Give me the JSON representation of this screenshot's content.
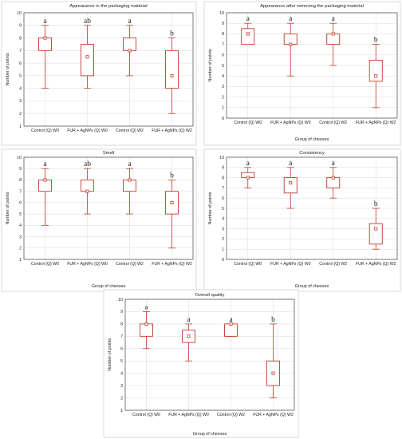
{
  "chart_data": [
    {
      "type": "boxplot",
      "title": "Appearance in the packaging material",
      "xlabel": "",
      "ylabel": "Number of points",
      "ylim": [
        1,
        10
      ],
      "grid": true,
      "categories": [
        "Control (Q) W0",
        "FUR + AgNPs (Q) W0",
        "Control (Q) W2",
        "FUR + AgNPs (Q) W2"
      ],
      "boxes": [
        {
          "min": 4,
          "q1": 7,
          "median": 8,
          "q3": 8,
          "max": 9,
          "label": "a"
        },
        {
          "min": 4,
          "q1": 5,
          "median": 6.5,
          "q3": 7.5,
          "max": 9,
          "label": "ab"
        },
        {
          "min": 5,
          "q1": 7,
          "median": 7,
          "q3": 8,
          "max": 9,
          "label": "a"
        },
        {
          "min": 2,
          "q1": 4,
          "median": 5,
          "q3": 7,
          "max": 8,
          "label": "b"
        }
      ]
    },
    {
      "type": "boxplot",
      "title": "Appearance after removing the packaging material",
      "xlabel": "Group of cheeses",
      "ylabel": "Number of points",
      "ylim": [
        0,
        10
      ],
      "grid": true,
      "categories": [
        "Control (Q) W0",
        "FUR + AgNPs (Q) W0",
        "Control (Q) W2",
        "FUR + AgNPs (Q) W2"
      ],
      "boxes": [
        {
          "min": 7,
          "q1": 7,
          "median": 8,
          "q3": 8.5,
          "max": 9,
          "label": "a"
        },
        {
          "min": 4,
          "q1": 7,
          "median": 7,
          "q3": 8,
          "max": 9,
          "label": "a"
        },
        {
          "min": 5,
          "q1": 7,
          "median": 8,
          "q3": 8,
          "max": 9,
          "label": "a"
        },
        {
          "min": 1,
          "q1": 3.5,
          "median": 4,
          "q3": 5.5,
          "max": 7,
          "label": "b"
        }
      ]
    },
    {
      "type": "boxplot",
      "title": "Smell",
      "xlabel": "Group of cheeses",
      "ylabel": "Number of points",
      "ylim": [
        1,
        10
      ],
      "grid": true,
      "categories": [
        "Control (Q) W0",
        "FUR + AgNPs (Q) W0",
        "Control (Q) W2",
        "FUR + AgNPs (Q) W2"
      ],
      "boxes": [
        {
          "min": 4,
          "q1": 7,
          "median": 8,
          "q3": 8,
          "max": 9,
          "label": "a"
        },
        {
          "min": 5,
          "q1": 7,
          "median": 7,
          "q3": 8,
          "max": 9,
          "label": "ab"
        },
        {
          "min": 5,
          "q1": 7,
          "median": 8,
          "q3": 8,
          "max": 9,
          "label": "a"
        },
        {
          "min": 2,
          "q1": 5,
          "median": 6,
          "q3": 7,
          "max": 8,
          "label": "b"
        }
      ]
    },
    {
      "type": "boxplot",
      "title": "Consistency",
      "xlabel": "Group of cheeses",
      "ylabel": "Number of points",
      "ylim": [
        0,
        10
      ],
      "grid": true,
      "categories": [
        "Control (Q) W0",
        "FUR + AgNPs (Q) W0",
        "Control (Q) W2",
        "FUR + AgNPs (Q) W2"
      ],
      "boxes": [
        {
          "min": 7,
          "q1": 8,
          "median": 8,
          "q3": 8.5,
          "max": 9,
          "label": "a"
        },
        {
          "min": 5,
          "q1": 6.5,
          "median": 7.5,
          "q3": 8,
          "max": 9,
          "label": "a"
        },
        {
          "min": 6,
          "q1": 7,
          "median": 8,
          "q3": 8,
          "max": 9,
          "label": "a"
        },
        {
          "min": 1,
          "q1": 1.5,
          "median": 3,
          "q3": 3.5,
          "max": 5,
          "label": "b"
        }
      ]
    },
    {
      "type": "boxplot",
      "title": "Overall quality",
      "xlabel": "Group of cheeses",
      "ylabel": "Number of points",
      "ylim": [
        1,
        10
      ],
      "grid": true,
      "categories": [
        "Control (Q) W0",
        "FUR + AgNPs (Q) W0",
        "Control (Q) W2",
        "FUR + AgNPs (Q) W2"
      ],
      "boxes": [
        {
          "min": 6,
          "q1": 7,
          "median": 8,
          "q3": 8,
          "max": 9,
          "label": "a"
        },
        {
          "min": 5,
          "q1": 6.5,
          "median": 7,
          "q3": 7.5,
          "max": 8,
          "label": "a"
        },
        {
          "min": 7,
          "q1": 7,
          "median": 8,
          "q3": 8,
          "max": 8,
          "label": "a"
        },
        {
          "min": 2,
          "q1": 3,
          "median": 4,
          "q3": 5,
          "max": 8,
          "label": "b"
        }
      ]
    }
  ]
}
